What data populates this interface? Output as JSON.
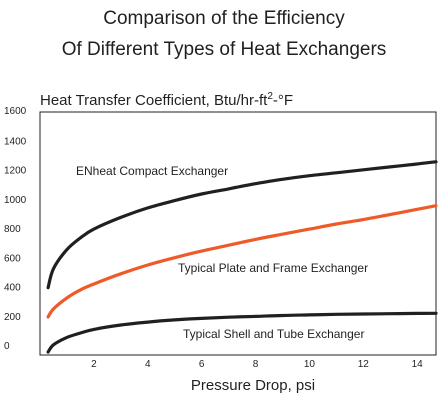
{
  "chart_data": {
    "type": "line",
    "title": [
      "Comparison of the Efficiency",
      "Of Different Types of Heat Exchangers"
    ],
    "ylabel": "Heat Transfer Coefficient, Btu/hr-ft²-°F",
    "xlabel": "Pressure Drop, psi",
    "xlim": [
      0,
      14.7
    ],
    "ylim": [
      -60,
      1600
    ],
    "x_ticks": [
      2,
      4,
      6,
      8,
      10,
      12,
      14
    ],
    "y_ticks": [
      0,
      200,
      400,
      600,
      800,
      1000,
      1200,
      1400,
      1600
    ],
    "grid": false,
    "legend": "none",
    "series": [
      {
        "name": "ENheat Compact Exchanger",
        "color": "#231f20",
        "x": [
          0.3,
          0.5,
          1,
          1.5,
          2,
          3,
          4,
          5,
          6,
          7,
          8,
          9,
          10,
          11,
          12,
          13,
          14,
          14.7
        ],
        "y": [
          400,
          530,
          660,
          740,
          800,
          880,
          945,
          995,
          1040,
          1075,
          1110,
          1140,
          1165,
          1185,
          1205,
          1225,
          1245,
          1260
        ]
      },
      {
        "name": "Typical Plate and Frame Exchanger",
        "color": "#ef5a29",
        "x": [
          0.3,
          0.5,
          1,
          1.5,
          2,
          3,
          4,
          5,
          6,
          7,
          8,
          9,
          10,
          11,
          12,
          13,
          14,
          14.7
        ],
        "y": [
          200,
          255,
          330,
          385,
          425,
          495,
          555,
          605,
          650,
          690,
          730,
          765,
          800,
          835,
          865,
          900,
          935,
          960
        ]
      },
      {
        "name": "Typical Shell and Tube Exchanger",
        "color": "#231f20",
        "x": [
          0.3,
          0.5,
          1,
          1.5,
          2,
          3,
          4,
          5,
          6,
          7,
          8,
          9,
          10,
          11,
          12,
          13,
          14,
          14.7
        ],
        "y": [
          -40,
          10,
          60,
          90,
          115,
          145,
          165,
          180,
          190,
          198,
          204,
          210,
          214,
          218,
          220,
          222,
          224,
          225
        ]
      }
    ]
  }
}
